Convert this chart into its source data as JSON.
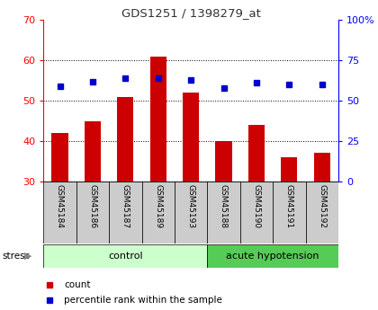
{
  "title": "GDS1251 / 1398279_at",
  "samples": [
    "GSM45184",
    "GSM45186",
    "GSM45187",
    "GSM45189",
    "GSM45193",
    "GSM45188",
    "GSM45190",
    "GSM45191",
    "GSM45192"
  ],
  "count_values": [
    42,
    45,
    51,
    61,
    52,
    40,
    44,
    36,
    37
  ],
  "percentile_values": [
    59,
    62,
    64,
    64,
    63,
    58,
    61,
    60,
    60
  ],
  "ylim_left": [
    30,
    70
  ],
  "ylim_right": [
    0,
    100
  ],
  "yticks_left": [
    30,
    40,
    50,
    60,
    70
  ],
  "yticks_right": [
    0,
    25,
    50,
    75,
    100
  ],
  "bar_color": "#cc0000",
  "dot_color": "#0000cc",
  "control_group_count": 5,
  "acute_group_count": 4,
  "control_label": "control",
  "acute_label": "acute hypotension",
  "stress_label": "stress",
  "legend_count": "count",
  "legend_pct": "percentile rank within the sample",
  "control_bg": "#ccffcc",
  "acute_bg": "#55cc55",
  "sample_bg": "#cccccc",
  "bar_width": 0.5,
  "grid_yticks": [
    40,
    50,
    60
  ],
  "title_color": "#333333",
  "left_tick_color": "red",
  "right_tick_color": "blue"
}
